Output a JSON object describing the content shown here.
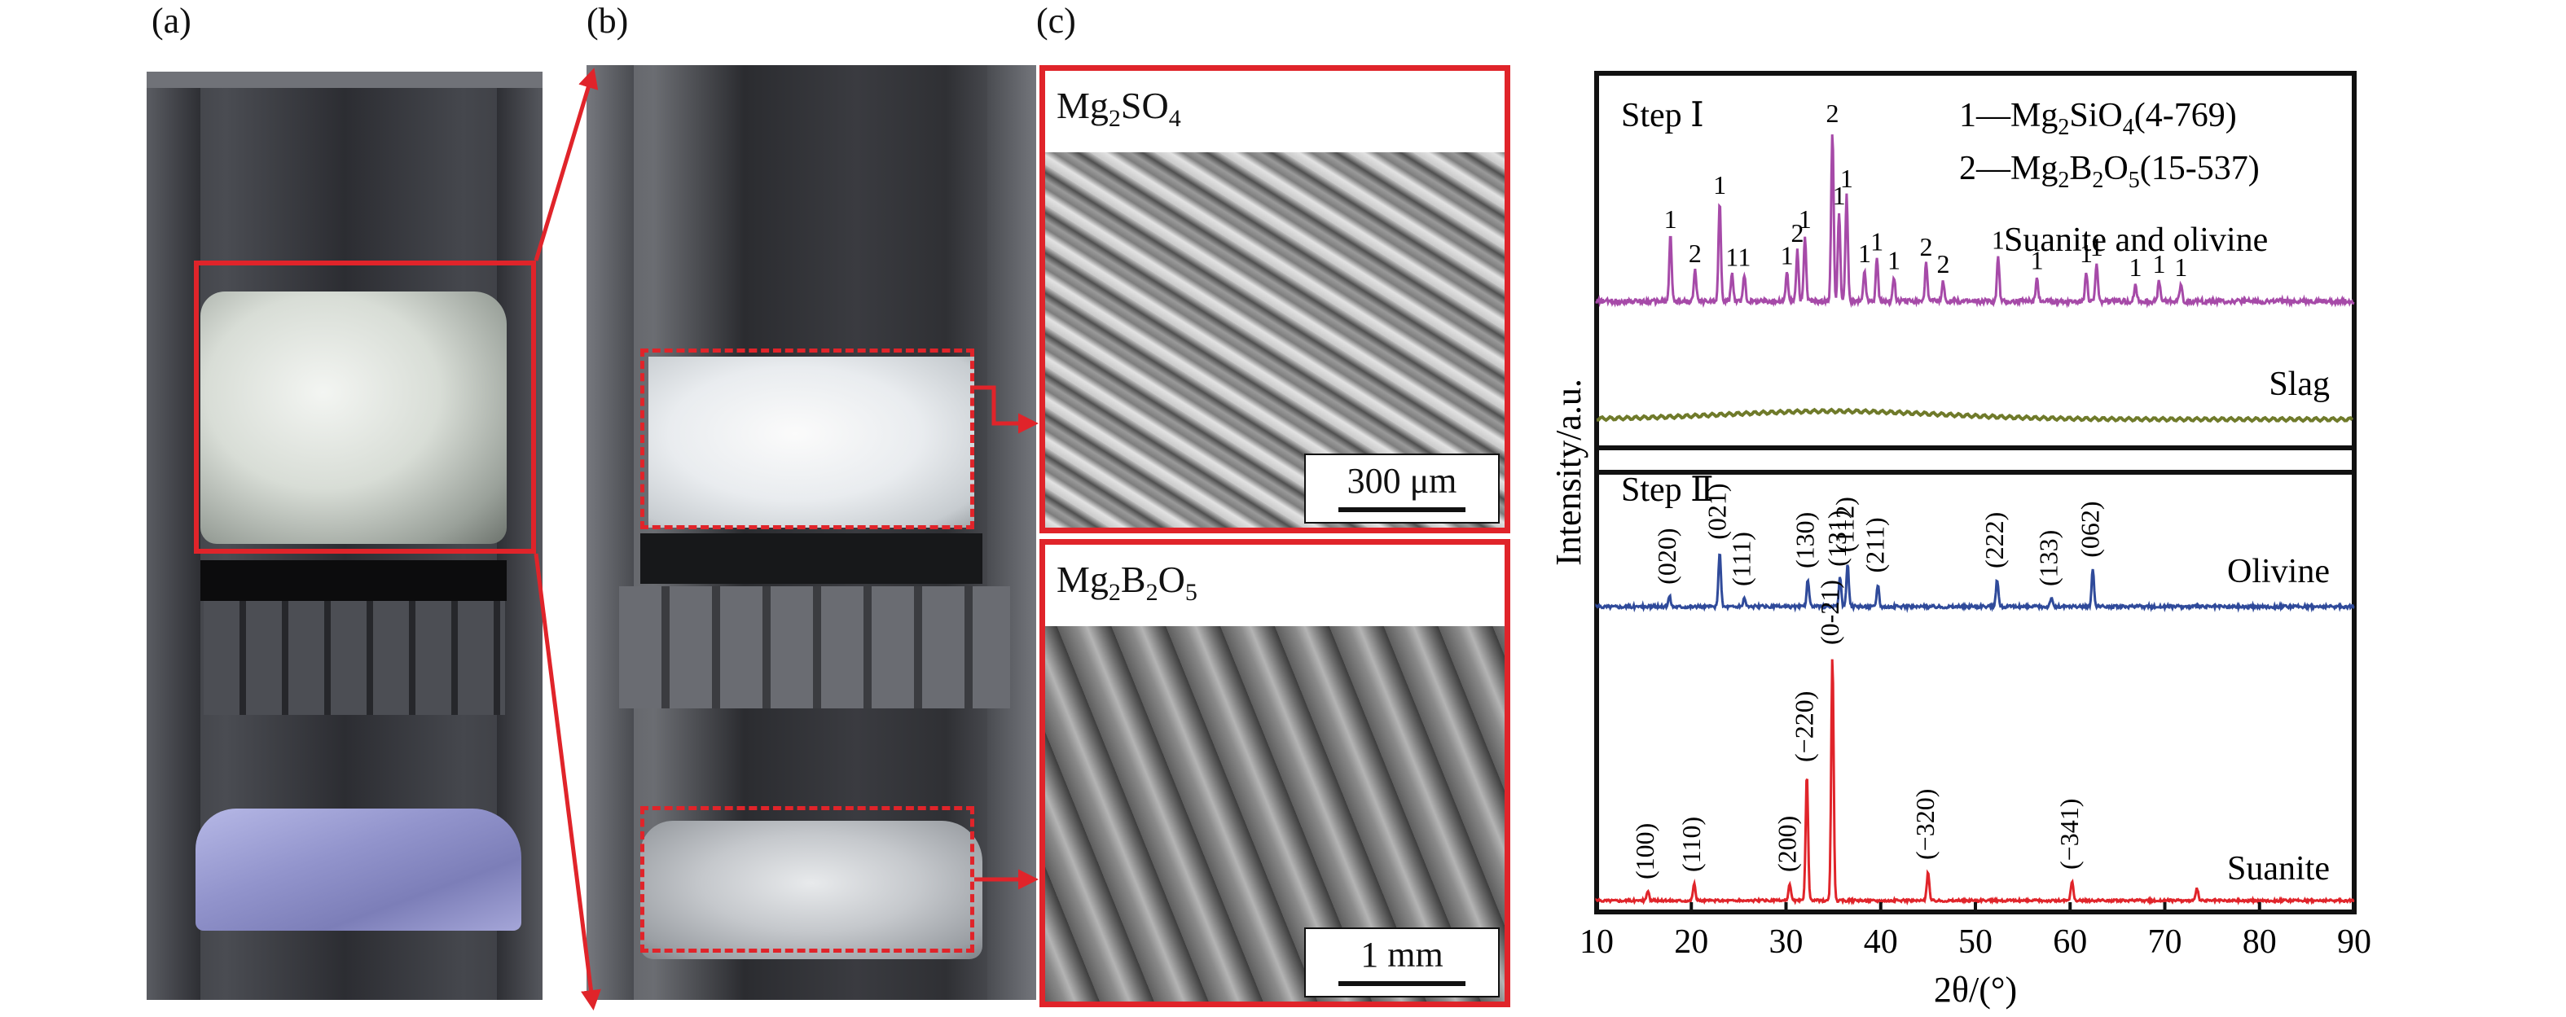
{
  "panels": {
    "a_label": "(a)",
    "b_label": "(b)",
    "c_label": "(c)"
  },
  "sem": {
    "top": {
      "title_base": "Mg",
      "title_sub1": "2",
      "title_rest": "SO",
      "title_sub2": "4",
      "scale": "300 μm"
    },
    "bottom": {
      "title_base": "Mg",
      "title_sub1": "2",
      "title_mid": "B",
      "title_sub2": "2",
      "title_rest": "O",
      "title_sub3": "5",
      "scale": "1 mm"
    }
  },
  "colors": {
    "accent_red": "#e0242a",
    "step1_purple": "#a64aa8",
    "slag_olive": "#6f7a2a",
    "olivine_blue": "#2f4a9a",
    "suanite_red": "#e0242a"
  },
  "chart_data": {
    "type": "line",
    "xlabel": "2θ/(°)",
    "ylabel": "Intensity/a.u.",
    "xlim": [
      10,
      90
    ],
    "xticks": [
      10,
      20,
      30,
      40,
      50,
      60,
      70,
      80,
      90
    ],
    "step1": {
      "title": "Step Ⅰ",
      "legend1_pre": "1—Mg",
      "legend1_s1": "2",
      "legend1_mid": "SiO",
      "legend1_s2": "4",
      "legend1_post": "(4-769)",
      "legend2_pre": "2—Mg",
      "legend2_s1": "2",
      "legend2_mid": "B",
      "legend2_s2": "2",
      "legend2_mid2": "O",
      "legend2_s3": "5",
      "legend2_post": "(15-537)",
      "series_label": "Suanite and olivine",
      "slag_label": "Slag",
      "peaks": [
        {
          "x": 17.8,
          "h": 0.38,
          "label": "1"
        },
        {
          "x": 20.4,
          "h": 0.18,
          "label": "2"
        },
        {
          "x": 23.0,
          "h": 0.58,
          "label": "1"
        },
        {
          "x": 24.3,
          "h": 0.16,
          "label": "1"
        },
        {
          "x": 25.6,
          "h": 0.16,
          "label": "1"
        },
        {
          "x": 30.1,
          "h": 0.17,
          "label": "1"
        },
        {
          "x": 31.2,
          "h": 0.3,
          "label": "2"
        },
        {
          "x": 32.0,
          "h": 0.38,
          "label": "1"
        },
        {
          "x": 34.9,
          "h": 1.0,
          "label": "2"
        },
        {
          "x": 35.6,
          "h": 0.52,
          "label": "1"
        },
        {
          "x": 36.4,
          "h": 0.62,
          "label": "1"
        },
        {
          "x": 38.3,
          "h": 0.18,
          "label": "1"
        },
        {
          "x": 39.6,
          "h": 0.25,
          "label": "1"
        },
        {
          "x": 41.4,
          "h": 0.14,
          "label": "1"
        },
        {
          "x": 44.8,
          "h": 0.22,
          "label": "2"
        },
        {
          "x": 46.6,
          "h": 0.12,
          "label": "2"
        },
        {
          "x": 52.4,
          "h": 0.26,
          "label": "1"
        },
        {
          "x": 56.5,
          "h": 0.14,
          "label": "1"
        },
        {
          "x": 61.7,
          "h": 0.18,
          "label": "1"
        },
        {
          "x": 62.8,
          "h": 0.22,
          "label": "1"
        },
        {
          "x": 66.9,
          "h": 0.1,
          "label": "1"
        },
        {
          "x": 69.4,
          "h": 0.12,
          "label": "1"
        },
        {
          "x": 71.7,
          "h": 0.1,
          "label": "1"
        }
      ]
    },
    "step2": {
      "title": "Step Ⅱ",
      "olivine_label": "Olivine",
      "suanite_label": "Suanite",
      "olivine_peaks": [
        {
          "x": 17.7,
          "h": 0.12,
          "label": "(020)"
        },
        {
          "x": 23.0,
          "h": 0.62,
          "label": "(021)"
        },
        {
          "x": 25.6,
          "h": 0.1,
          "label": "(111)"
        },
        {
          "x": 32.3,
          "h": 0.3,
          "label": "(130)"
        },
        {
          "x": 35.7,
          "h": 0.32,
          "label": "(131)"
        },
        {
          "x": 36.5,
          "h": 0.48,
          "label": "(112)"
        },
        {
          "x": 39.7,
          "h": 0.25,
          "label": "(211)"
        },
        {
          "x": 52.3,
          "h": 0.3,
          "label": "(222)"
        },
        {
          "x": 58.0,
          "h": 0.1,
          "label": "(133)"
        },
        {
          "x": 62.4,
          "h": 0.42,
          "label": "(062)"
        }
      ],
      "suanite_peaks": [
        {
          "x": 15.4,
          "h": 0.04,
          "label": "(100)"
        },
        {
          "x": 20.3,
          "h": 0.07,
          "label": "(110)"
        },
        {
          "x": 30.4,
          "h": 0.07,
          "label": "(200)"
        },
        {
          "x": 32.2,
          "h": 0.52,
          "label": "(−220)"
        },
        {
          "x": 34.9,
          "h": 1.0,
          "label": "(0-21)"
        },
        {
          "x": 45.0,
          "h": 0.12,
          "label": "(−320)"
        },
        {
          "x": 60.2,
          "h": 0.08,
          "label": "(−341)"
        },
        {
          "x": 73.4,
          "h": 0.05,
          "label": ""
        }
      ]
    }
  }
}
